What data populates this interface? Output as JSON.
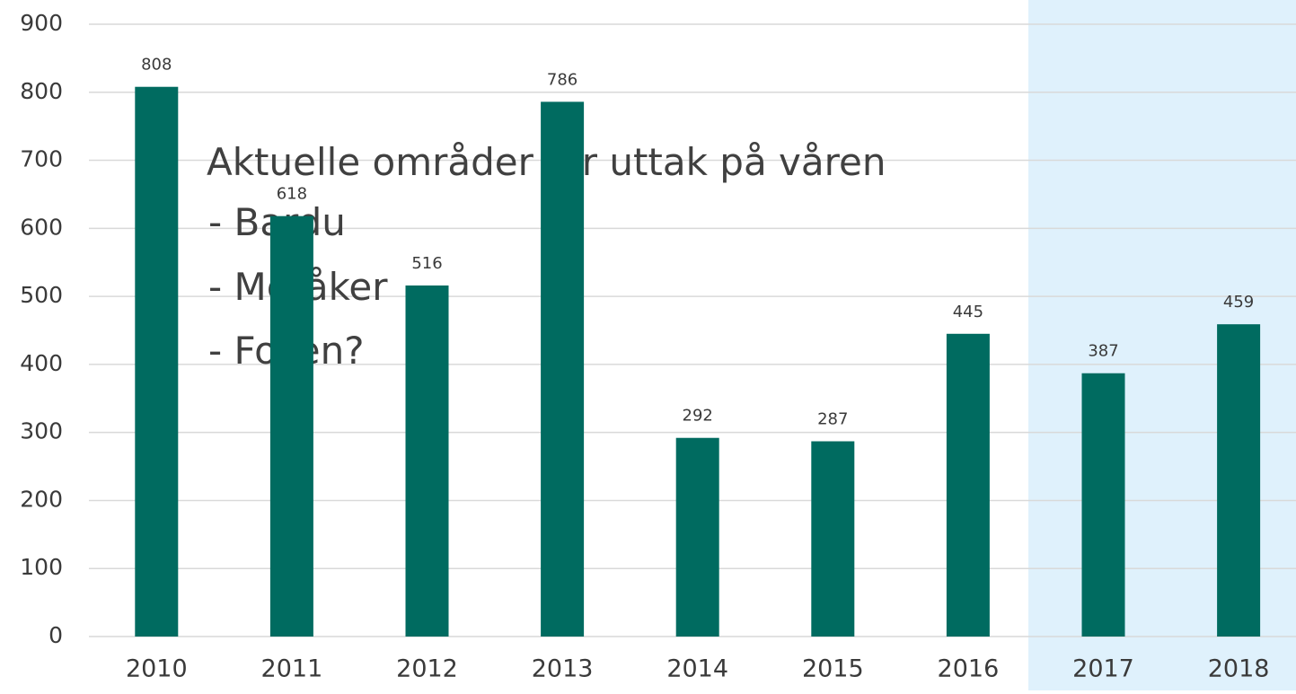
{
  "chart_data": {
    "type": "bar",
    "categories": [
      "2010",
      "2011",
      "2012",
      "2013",
      "2014",
      "2015",
      "2016",
      "2017",
      "2018"
    ],
    "values": [
      808,
      618,
      516,
      786,
      292,
      287,
      445,
      387,
      459
    ],
    "color": "#006b60",
    "ylim": [
      0,
      900
    ],
    "yticks": [
      0,
      100,
      200,
      300,
      400,
      500,
      600,
      700,
      800,
      900
    ],
    "grid": true,
    "annotations": [
      "Aktuelle områder for uttak på våren",
      "- Bardu",
      "- Meråker",
      "- Fosen?"
    ]
  }
}
